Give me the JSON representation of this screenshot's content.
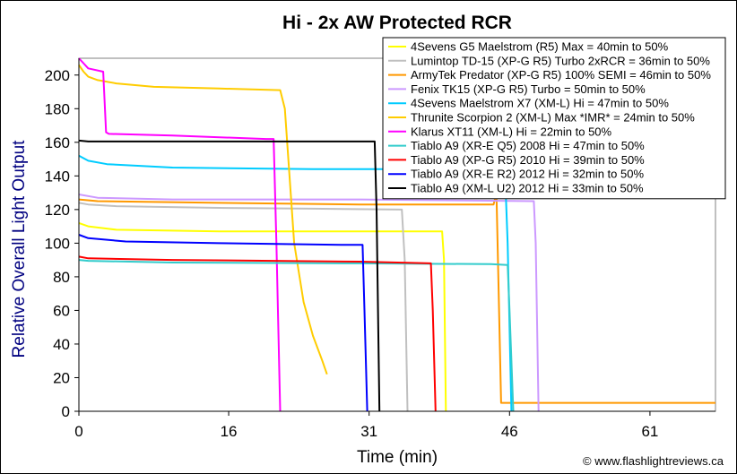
{
  "chart_data": {
    "type": "line",
    "title": "Hi - 2x AW Protected RCR",
    "xlabel": "Time (min)",
    "ylabel": "Relative Overall Light Output",
    "xlim": [
      0,
      68
    ],
    "ylim": [
      0,
      210
    ],
    "xticks": [
      0,
      16,
      31,
      46,
      61
    ],
    "yticks": [
      0,
      20,
      40,
      60,
      80,
      100,
      120,
      140,
      160,
      180,
      200
    ],
    "grid": false,
    "legend_position": "top-right",
    "credit": "© www.flashlightreviews.ca",
    "series": [
      {
        "name": "4Sevens G5 Maelstrom (R5) Max = 40min to 50%",
        "color": "#ffff00",
        "points": [
          [
            0,
            112
          ],
          [
            1,
            110
          ],
          [
            4,
            108
          ],
          [
            15,
            107
          ],
          [
            30,
            107
          ],
          [
            38.8,
            107
          ],
          [
            39,
            90
          ],
          [
            39.2,
            0
          ]
        ]
      },
      {
        "name": "Lumintop TD-15 (XP-G R5) Turbo 2xRCR = 36min to 50%",
        "color": "#c0c0c0",
        "points": [
          [
            0,
            124
          ],
          [
            1,
            123
          ],
          [
            4,
            122
          ],
          [
            15,
            121
          ],
          [
            25,
            120.5
          ],
          [
            34.5,
            120
          ],
          [
            34.8,
            90
          ],
          [
            35.1,
            0
          ]
        ]
      },
      {
        "name": "ArmyTek Predator (XP-G R5) 100% SEMI = 46min to 50%",
        "color": "#ff9900",
        "points": [
          [
            0,
            126
          ],
          [
            2,
            125
          ],
          [
            15,
            124
          ],
          [
            30,
            123
          ],
          [
            43,
            123
          ],
          [
            44.3,
            123
          ],
          [
            44.6,
            130
          ],
          [
            44.8,
            80
          ],
          [
            45.1,
            5
          ],
          [
            52,
            5
          ],
          [
            68,
            5
          ]
        ]
      },
      {
        "name": "Fenix TK15 (XP-G R5) Turbo = 50min to 50%",
        "color": "#cc99ff",
        "points": [
          [
            0,
            129
          ],
          [
            2,
            127
          ],
          [
            10,
            126
          ],
          [
            30,
            126
          ],
          [
            48.6,
            125
          ],
          [
            48.8,
            100
          ],
          [
            49.1,
            0
          ]
        ]
      },
      {
        "name": "4Sevens Maelstrom X7 (XM-L) Hi = 47min to 50%",
        "color": "#00ccff",
        "points": [
          [
            0,
            152
          ],
          [
            1,
            149
          ],
          [
            3,
            147
          ],
          [
            10,
            145
          ],
          [
            25,
            144
          ],
          [
            40,
            144
          ],
          [
            44,
            144
          ],
          [
            45.5,
            144
          ],
          [
            45.8,
            100
          ],
          [
            46.2,
            0
          ]
        ]
      },
      {
        "name": "Thrunite Scorpion 2 (XM-L) Max *IMR* = 24min to 50%",
        "color": "#ffcc00",
        "points": [
          [
            0,
            206
          ],
          [
            0.5,
            202
          ],
          [
            1,
            199
          ],
          [
            2,
            197
          ],
          [
            4,
            195
          ],
          [
            8,
            193
          ],
          [
            15,
            192
          ],
          [
            21.5,
            191
          ],
          [
            22,
            180
          ],
          [
            23,
            100
          ],
          [
            24,
            65
          ],
          [
            25,
            45
          ],
          [
            26,
            30
          ],
          [
            26.5,
            22
          ]
        ]
      },
      {
        "name": "Klarus XT11 (XM-L) Hi = 22min to 50%",
        "color": "#ff00ff",
        "points": [
          [
            0,
            210
          ],
          [
            1,
            204
          ],
          [
            2.6,
            202
          ],
          [
            2.9,
            166
          ],
          [
            3.2,
            165
          ],
          [
            10,
            164
          ],
          [
            20,
            162
          ],
          [
            20.8,
            162
          ],
          [
            21.1,
            100
          ],
          [
            21.5,
            0
          ]
        ]
      },
      {
        "name": "Tiablo A9 (XR-E Q5) 2008 Hi = 47min to 50%",
        "color": "#33cccc",
        "points": [
          [
            0,
            90
          ],
          [
            1,
            89.5
          ],
          [
            10,
            88.5
          ],
          [
            30,
            88
          ],
          [
            44,
            87.5
          ],
          [
            45.8,
            87
          ],
          [
            46,
            60
          ],
          [
            46.4,
            0
          ]
        ]
      },
      {
        "name": "Tiablo A9 (XP-G R5) 2010 Hi = 39min to 50%",
        "color": "#ff0000",
        "points": [
          [
            0,
            92
          ],
          [
            1,
            91
          ],
          [
            10,
            90
          ],
          [
            30,
            89
          ],
          [
            37.6,
            88
          ],
          [
            37.8,
            60
          ],
          [
            38.1,
            0
          ]
        ]
      },
      {
        "name": "Tiablo A9 (XR-E R2) 2012 Hi = 32min to 50%",
        "color": "#0000ff",
        "points": [
          [
            0,
            105
          ],
          [
            1,
            103
          ],
          [
            5,
            101
          ],
          [
            15,
            100
          ],
          [
            28,
            99
          ],
          [
            30.3,
            99
          ],
          [
            30.5,
            60
          ],
          [
            30.8,
            0
          ]
        ]
      },
      {
        "name": "Tiablo A9 (XM-L U2) 2012 Hi = 33min to 50%",
        "color": "#000000",
        "points": [
          [
            0,
            161
          ],
          [
            1,
            160.5
          ],
          [
            10,
            160.5
          ],
          [
            31.6,
            160.5
          ],
          [
            31.8,
            120
          ],
          [
            32.1,
            0
          ]
        ]
      }
    ]
  }
}
